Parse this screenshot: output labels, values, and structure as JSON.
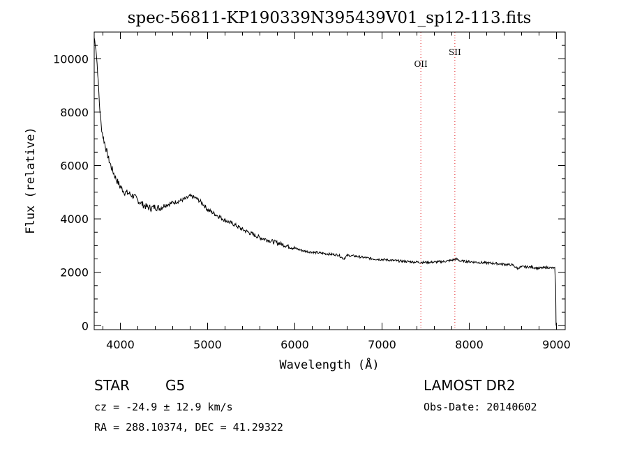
{
  "chart_data": {
    "type": "line",
    "title": "spec-56811-KP190339N395439V01_sp12-113.fits",
    "xlabel": "Wavelength (Å)",
    "ylabel": "Flux (relative)",
    "xlim": [
      3700,
      9100
    ],
    "ylim": [
      -150,
      11000
    ],
    "x_ticks": [
      4000,
      5000,
      6000,
      7000,
      8000,
      9000
    ],
    "y_ticks": [
      0,
      2000,
      4000,
      6000,
      8000,
      10000
    ],
    "grid": false,
    "series": [
      {
        "x": [
          3700,
          3720,
          3740,
          3760,
          3780,
          3800,
          3830,
          3860,
          3900,
          3950,
          4000,
          4050,
          4100,
          4150,
          4200,
          4250,
          4300,
          4350,
          4400,
          4450,
          4500,
          4550,
          4600,
          4650,
          4700,
          4750,
          4800,
          4850,
          4900,
          4950,
          5000,
          5100,
          5200,
          5300,
          5400,
          5500,
          5600,
          5700,
          5800,
          5900,
          6000,
          6100,
          6200,
          6300,
          6400,
          6500,
          6560,
          6600,
          6700,
          6800,
          6900,
          7000,
          7100,
          7200,
          7300,
          7400,
          7500,
          7600,
          7700,
          7800,
          7850,
          7900,
          8000,
          8100,
          8200,
          8300,
          8400,
          8500,
          8550,
          8600,
          8700,
          8800,
          8900,
          8980,
          8990,
          8995
        ],
        "y": [
          10800,
          10400,
          9500,
          8300,
          7500,
          7100,
          6700,
          6300,
          5900,
          5500,
          5200,
          5000,
          4950,
          4850,
          4700,
          4550,
          4450,
          4400,
          4450,
          4400,
          4500,
          4550,
          4600,
          4650,
          4700,
          4750,
          4850,
          4800,
          4700,
          4550,
          4350,
          4150,
          3950,
          3800,
          3600,
          3450,
          3300,
          3200,
          3100,
          3000,
          2900,
          2800,
          2750,
          2720,
          2680,
          2650,
          2500,
          2630,
          2600,
          2550,
          2500,
          2480,
          2450,
          2420,
          2400,
          2380,
          2370,
          2380,
          2400,
          2450,
          2500,
          2420,
          2400,
          2370,
          2350,
          2330,
          2300,
          2270,
          2150,
          2200,
          2200,
          2150,
          2180,
          2150,
          1500,
          0
        ]
      }
    ],
    "vlines": [
      {
        "x": 7445,
        "label": "OII",
        "color": "#e31a1c"
      },
      {
        "x": 7835,
        "label": "SII",
        "color": "#e31a1c"
      }
    ]
  },
  "info": {
    "object_class": "STAR",
    "subclass": "G5",
    "survey": "LAMOST DR2",
    "cz": "cz = -24.9 ± 12.9 km/s",
    "obs_date": "Obs-Date: 20140602",
    "coords": "RA = 288.10374, DEC =  41.29322"
  }
}
